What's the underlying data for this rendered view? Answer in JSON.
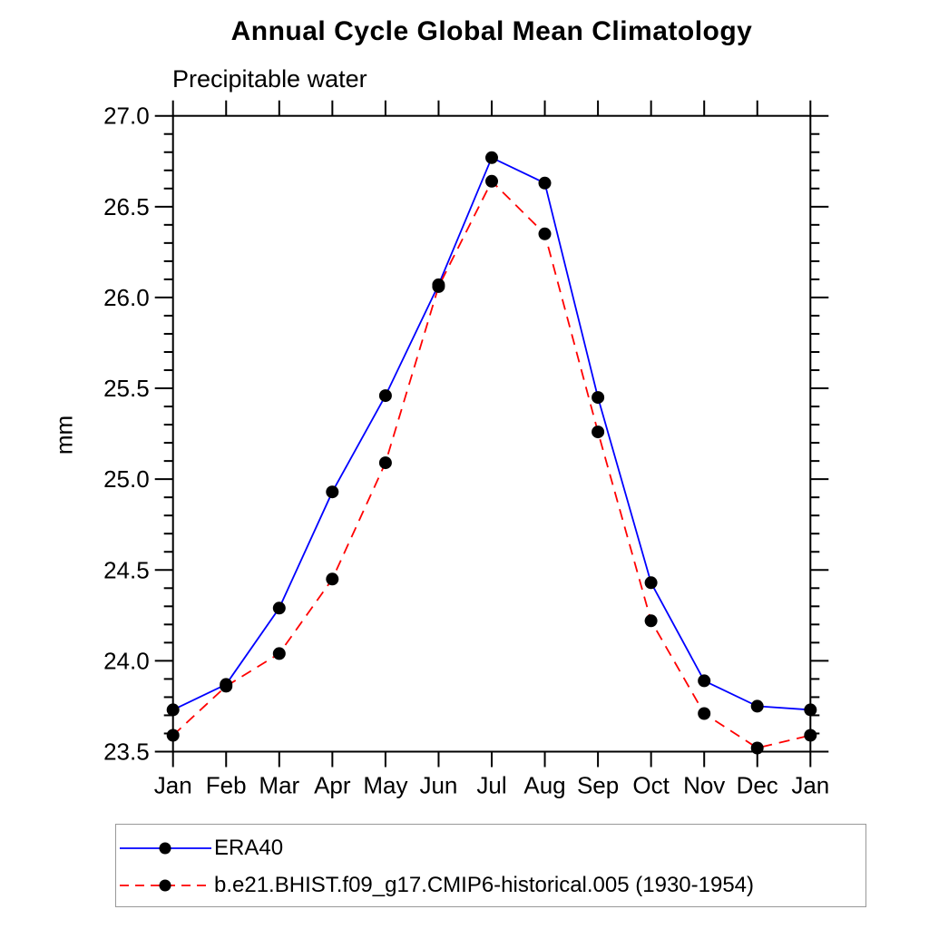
{
  "title": "Annual Cycle Global Mean Climatology",
  "subtitle": "Precipitable water",
  "ylabel": "mm",
  "chart_data": {
    "type": "line",
    "categories": [
      "Jan",
      "Feb",
      "Mar",
      "Apr",
      "May",
      "Jun",
      "Jul",
      "Aug",
      "Sep",
      "Oct",
      "Nov",
      "Dec",
      "Jan"
    ],
    "series": [
      {
        "name": "ERA40",
        "color": "#0000ff",
        "style": "solid",
        "marker": "filled-circle",
        "values": [
          23.73,
          23.87,
          24.29,
          24.93,
          25.46,
          26.07,
          26.77,
          26.63,
          25.45,
          24.43,
          23.89,
          23.75,
          23.73
        ]
      },
      {
        "name": "b.e21.BHIST.f09_g17.CMIP6-historical.005 (1930-1954)",
        "color": "#ff0000",
        "style": "dashed",
        "marker": "filled-circle",
        "values": [
          23.59,
          23.86,
          24.04,
          24.45,
          25.09,
          26.06,
          26.64,
          26.35,
          25.26,
          24.22,
          23.71,
          23.52,
          23.59
        ]
      }
    ],
    "ylim": [
      23.5,
      27.0
    ],
    "ytick_major": 0.5,
    "ytick_minor": 0.1,
    "ytick_labels": [
      "23.5",
      "24.0",
      "24.5",
      "25.0",
      "25.5",
      "26.0",
      "26.5",
      "27.0"
    ],
    "axis_color": "#000000",
    "marker_color": "#000000",
    "grid": false,
    "legend_position": "bottom-left"
  }
}
